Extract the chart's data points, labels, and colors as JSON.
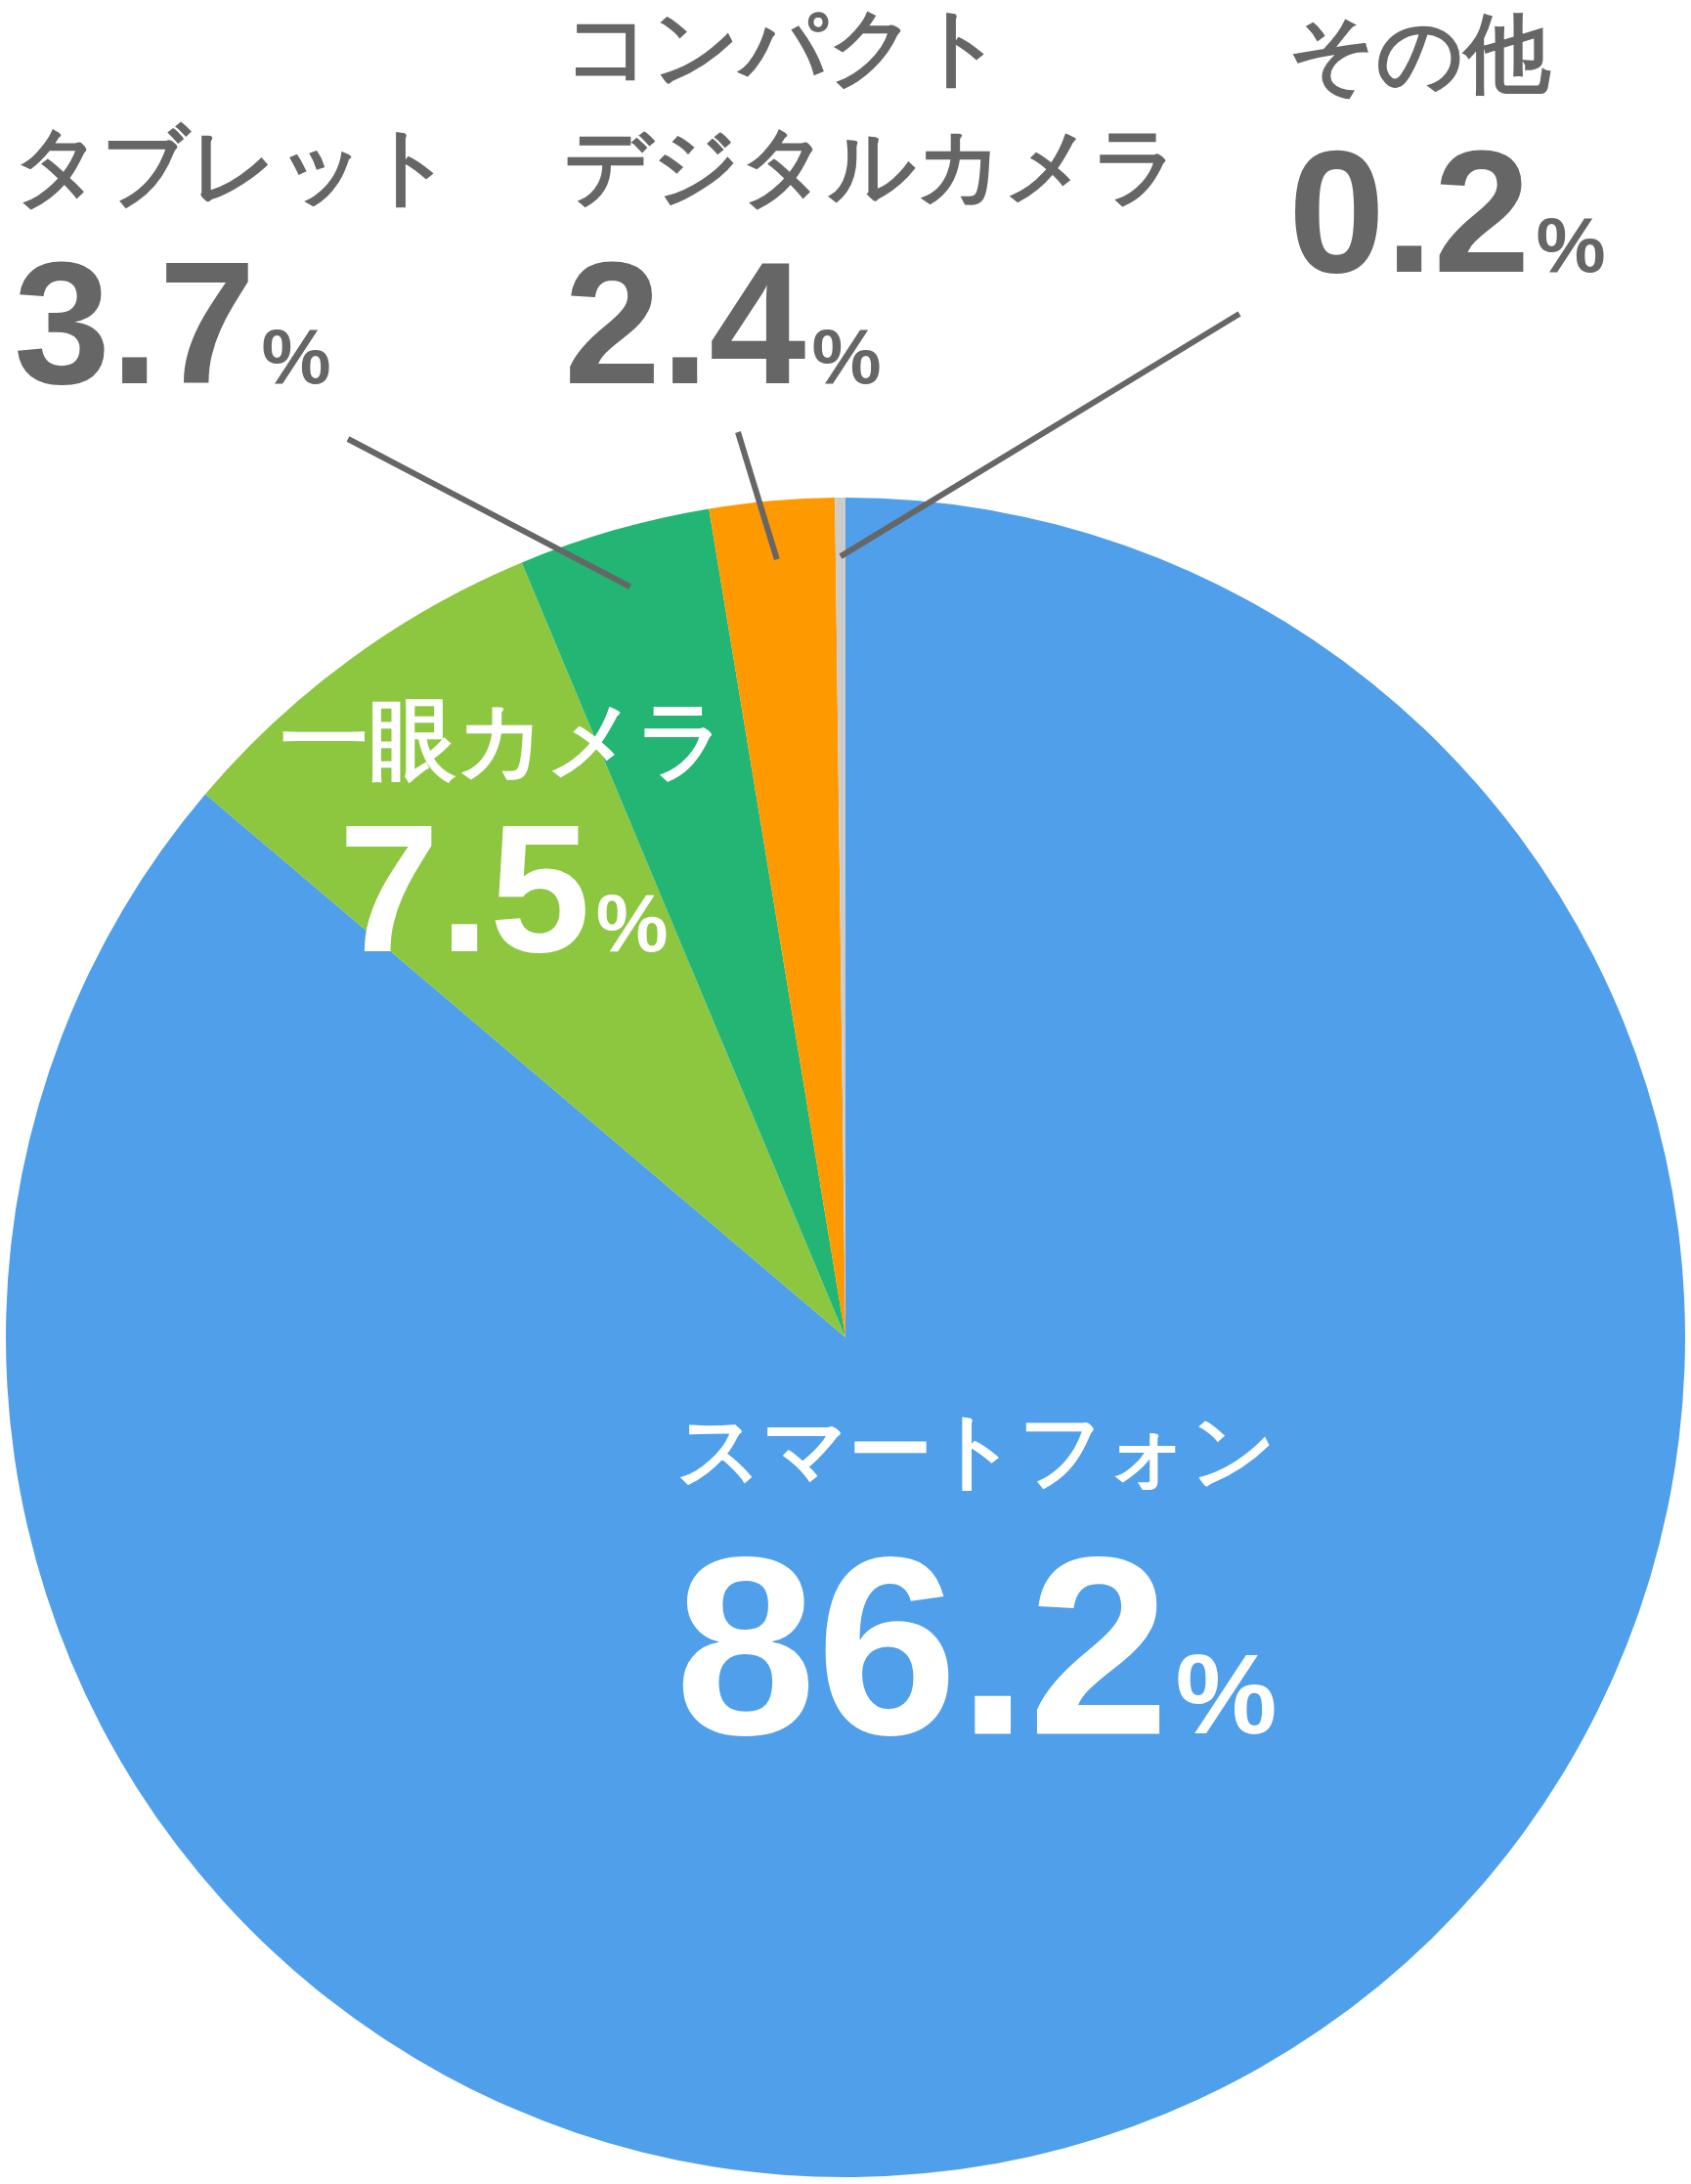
{
  "chart_data": {
    "type": "pie",
    "categories": [
      "スマートフォン",
      "一眼カメラ",
      "タブレット",
      "コンパクトデジタルカメラ",
      "その他"
    ],
    "values": [
      86.2,
      7.5,
      3.7,
      2.4,
      0.2
    ],
    "colors": [
      "#4f9fea",
      "#8dc63f",
      "#22b573",
      "#ff9900",
      "#cccccc"
    ],
    "value_labels": [
      "86.2%",
      "7.5%",
      "3.7%",
      "2.4%",
      "0.2%"
    ],
    "legend": false
  }
}
